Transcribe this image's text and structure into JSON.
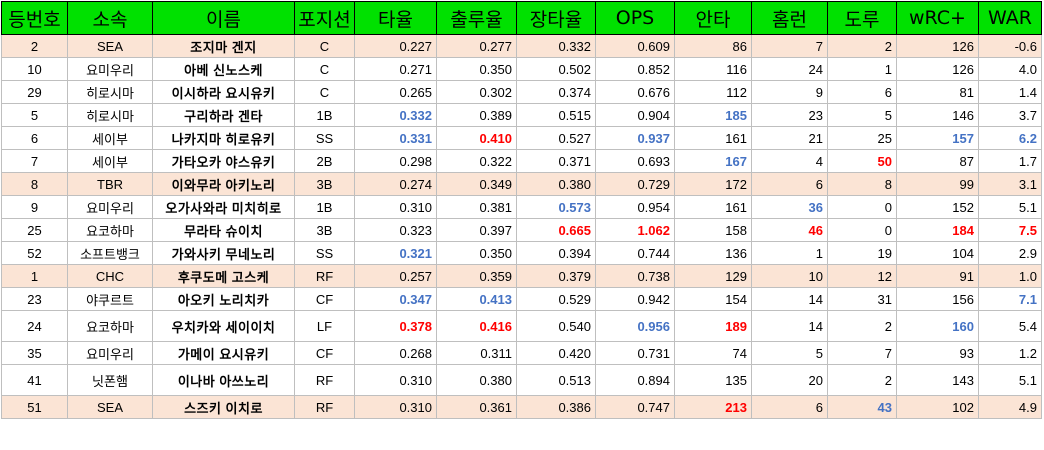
{
  "headers": [
    "등번호",
    "소속",
    "이름",
    "포지션",
    "타율",
    "출루율",
    "장타율",
    "OPS",
    "안타",
    "홈런",
    "도루",
    "wRC+",
    "WAR"
  ],
  "colors": {
    "header_bg": "#00e100",
    "pink_row_bg": "#fbe4d5",
    "highlight_blue": "#4472c4",
    "highlight_red": "#ff0000"
  },
  "rows": [
    {
      "num": "2",
      "team": "SEA",
      "name": "조지마 겐지",
      "pos": "C",
      "avg": "0.227",
      "obp": "0.277",
      "slg": "0.332",
      "ops": "0.609",
      "hits": "86",
      "hr": "7",
      "sb": "2",
      "wrc": "126",
      "war": "-0.6",
      "shaded": true,
      "highlights": {}
    },
    {
      "num": "10",
      "team": "요미우리",
      "name": "아베 신노스케",
      "pos": "C",
      "avg": "0.271",
      "obp": "0.350",
      "slg": "0.502",
      "ops": "0.852",
      "hits": "116",
      "hr": "24",
      "sb": "1",
      "wrc": "126",
      "war": "4.0",
      "shaded": false,
      "highlights": {}
    },
    {
      "num": "29",
      "team": "히로시마",
      "name": "이시하라 요시유키",
      "pos": "C",
      "avg": "0.265",
      "obp": "0.302",
      "slg": "0.374",
      "ops": "0.676",
      "hits": "112",
      "hr": "9",
      "sb": "6",
      "wrc": "81",
      "war": "1.4",
      "shaded": false,
      "highlights": {}
    },
    {
      "num": "5",
      "team": "히로시마",
      "name": "구리하라 겐타",
      "pos": "1B",
      "avg": "0.332",
      "obp": "0.389",
      "slg": "0.515",
      "ops": "0.904",
      "hits": "185",
      "hr": "23",
      "sb": "5",
      "wrc": "146",
      "war": "3.7",
      "shaded": false,
      "highlights": {
        "avg": "blue",
        "hits": "blue"
      }
    },
    {
      "num": "6",
      "team": "세이부",
      "name": "나카지마 히로유키",
      "pos": "SS",
      "avg": "0.331",
      "obp": "0.410",
      "slg": "0.527",
      "ops": "0.937",
      "hits": "161",
      "hr": "21",
      "sb": "25",
      "wrc": "157",
      "war": "6.2",
      "shaded": false,
      "highlights": {
        "avg": "blue",
        "obp": "red",
        "ops": "blue",
        "wrc": "blue",
        "war": "blue"
      }
    },
    {
      "num": "7",
      "team": "세이부",
      "name": "가타오카 야스유키",
      "pos": "2B",
      "avg": "0.298",
      "obp": "0.322",
      "slg": "0.371",
      "ops": "0.693",
      "hits": "167",
      "hr": "4",
      "sb": "50",
      "wrc": "87",
      "war": "1.7",
      "shaded": false,
      "highlights": {
        "hits": "blue",
        "sb": "red"
      }
    },
    {
      "num": "8",
      "team": "TBR",
      "name": "이와무라 아키노리",
      "pos": "3B",
      "avg": "0.274",
      "obp": "0.349",
      "slg": "0.380",
      "ops": "0.729",
      "hits": "172",
      "hr": "6",
      "sb": "8",
      "wrc": "99",
      "war": "3.1",
      "shaded": true,
      "highlights": {}
    },
    {
      "num": "9",
      "team": "요미우리",
      "name": "오가사와라 미치히로",
      "pos": "1B",
      "avg": "0.310",
      "obp": "0.381",
      "slg": "0.573",
      "ops": "0.954",
      "hits": "161",
      "hr": "36",
      "sb": "0",
      "wrc": "152",
      "war": "5.1",
      "shaded": false,
      "highlights": {
        "slg": "blue",
        "hr": "blue"
      }
    },
    {
      "num": "25",
      "team": "요코하마",
      "name": "무라타 슈이치",
      "pos": "3B",
      "avg": "0.323",
      "obp": "0.397",
      "slg": "0.665",
      "ops": "1.062",
      "hits": "158",
      "hr": "46",
      "sb": "0",
      "wrc": "184",
      "war": "7.5",
      "shaded": false,
      "highlights": {
        "slg": "red",
        "ops": "red",
        "hr": "red",
        "wrc": "red",
        "war": "red"
      }
    },
    {
      "num": "52",
      "team": "소프트뱅크",
      "name": "가와사키 무네노리",
      "pos": "SS",
      "avg": "0.321",
      "obp": "0.350",
      "slg": "0.394",
      "ops": "0.744",
      "hits": "136",
      "hr": "1",
      "sb": "19",
      "wrc": "104",
      "war": "2.9",
      "shaded": false,
      "highlights": {
        "avg": "blue"
      }
    },
    {
      "num": "1",
      "team": "CHC",
      "name": "후쿠도메 고스케",
      "pos": "RF",
      "avg": "0.257",
      "obp": "0.359",
      "slg": "0.379",
      "ops": "0.738",
      "hits": "129",
      "hr": "10",
      "sb": "12",
      "wrc": "91",
      "war": "1.0",
      "shaded": true,
      "highlights": {}
    },
    {
      "num": "23",
      "team": "야쿠르트",
      "name": "아오키 노리치카",
      "pos": "CF",
      "avg": "0.347",
      "obp": "0.413",
      "slg": "0.529",
      "ops": "0.942",
      "hits": "154",
      "hr": "14",
      "sb": "31",
      "wrc": "156",
      "war": "7.1",
      "shaded": false,
      "highlights": {
        "avg": "blue",
        "obp": "blue",
        "war": "blue"
      }
    },
    {
      "num": "24",
      "team": "요코하마",
      "name": "우치카와 세이이치",
      "pos": "LF",
      "avg": "0.378",
      "obp": "0.416",
      "slg": "0.540",
      "ops": "0.956",
      "hits": "189",
      "hr": "14",
      "sb": "2",
      "wrc": "160",
      "war": "5.4",
      "shaded": false,
      "highlights": {
        "avg": "red",
        "obp": "red",
        "ops": "blue",
        "hits": "red",
        "wrc": "blue"
      }
    },
    {
      "num": "35",
      "team": "요미우리",
      "name": "가메이 요시유키",
      "pos": "CF",
      "avg": "0.268",
      "obp": "0.311",
      "slg": "0.420",
      "ops": "0.731",
      "hits": "74",
      "hr": "5",
      "sb": "7",
      "wrc": "93",
      "war": "1.2",
      "shaded": false,
      "highlights": {}
    },
    {
      "num": "41",
      "team": "닛폰햄",
      "name": "이나바 아쓰노리",
      "pos": "RF",
      "avg": "0.310",
      "obp": "0.380",
      "slg": "0.513",
      "ops": "0.894",
      "hits": "135",
      "hr": "20",
      "sb": "2",
      "wrc": "143",
      "war": "5.1",
      "shaded": false,
      "highlights": {}
    },
    {
      "num": "51",
      "team": "SEA",
      "name": "스즈키 이치로",
      "pos": "RF",
      "avg": "0.310",
      "obp": "0.361",
      "slg": "0.386",
      "ops": "0.747",
      "hits": "213",
      "hr": "6",
      "sb": "43",
      "wrc": "102",
      "war": "4.9",
      "shaded": true,
      "highlights": {
        "hits": "red",
        "sb": "blue"
      }
    }
  ]
}
